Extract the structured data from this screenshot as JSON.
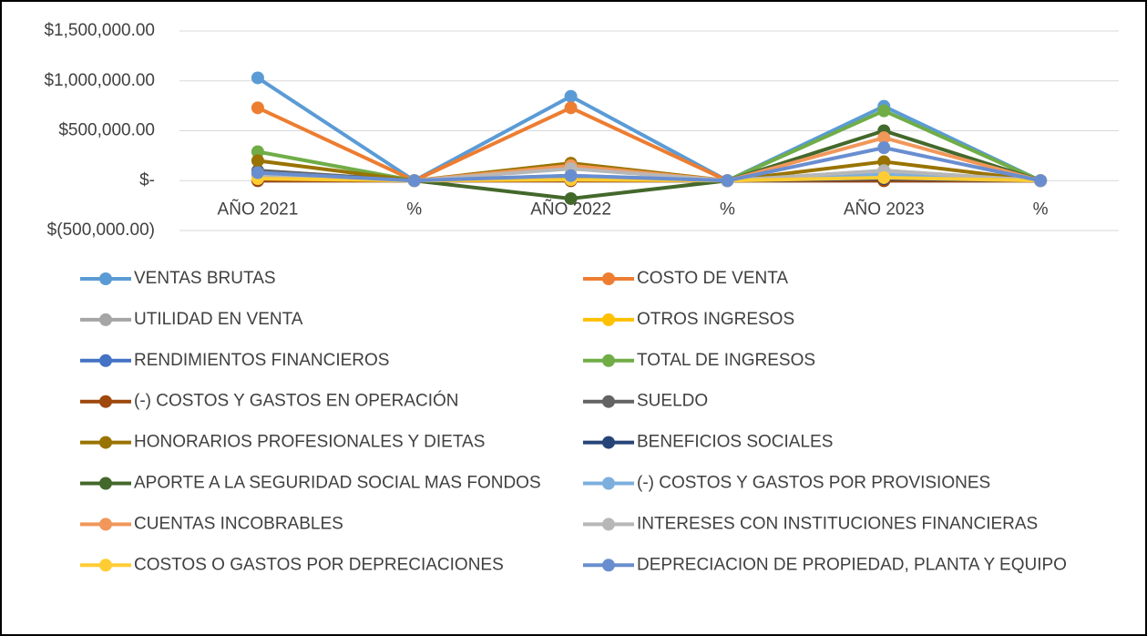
{
  "chart_data": {
    "type": "line",
    "categories": [
      "AÑO 2021",
      "%",
      "AÑO 2022",
      "%",
      "AÑO 2023",
      "%"
    ],
    "ylim": [
      -500000,
      1500000
    ],
    "yticks": [
      {
        "value": -500000,
        "label": "$(500,000.00)"
      },
      {
        "value": 0,
        "label": "$-"
      },
      {
        "value": 500000,
        "label": "$500,000.00"
      },
      {
        "value": 1000000,
        "label": "$1,000,000.00"
      },
      {
        "value": 1500000,
        "label": "$1,500,000.00"
      }
    ],
    "grid": true,
    "legend": "bottom",
    "series": [
      {
        "name": "VENTAS BRUTAS",
        "color": "#5b9bd5",
        "values": [
          1030000,
          0,
          845000,
          0,
          745000,
          0
        ]
      },
      {
        "name": "COSTO DE VENTA",
        "color": "#ed7d31",
        "values": [
          730000,
          0,
          730000,
          0,
          0,
          0
        ]
      },
      {
        "name": "UTILIDAD EN VENTA",
        "color": "#a5a5a5",
        "values": [
          100000,
          0,
          130000,
          0,
          100000,
          0
        ]
      },
      {
        "name": "OTROS INGRESOS",
        "color": "#ffc000",
        "values": [
          10000,
          0,
          10000,
          0,
          10000,
          0
        ]
      },
      {
        "name": "RENDIMIENTOS FINANCIEROS",
        "color": "#4472c4",
        "values": [
          0,
          0,
          0,
          0,
          0,
          0
        ]
      },
      {
        "name": "TOTAL DE INGRESOS",
        "color": "#70ad47",
        "values": [
          290000,
          0,
          130000,
          0,
          700000,
          0
        ]
      },
      {
        "name": "(-) COSTOS Y GASTOS EN OPERACIÓN",
        "color": "#9e480e",
        "values": [
          0,
          0,
          0,
          0,
          0,
          0
        ]
      },
      {
        "name": "SUELDO",
        "color": "#636363",
        "values": [
          100000,
          0,
          20000,
          0,
          30000,
          0
        ]
      },
      {
        "name": "HONORARIOS PROFESIONALES Y DIETAS",
        "color": "#997300",
        "values": [
          200000,
          0,
          175000,
          0,
          190000,
          0
        ]
      },
      {
        "name": "BENEFICIOS SOCIALES",
        "color": "#264478",
        "values": [
          70000,
          0,
          40000,
          0,
          20000,
          0
        ]
      },
      {
        "name": "APORTE A LA SEGURIDAD SOCIAL MAS FONDOS",
        "color": "#43682b",
        "values": [
          50000,
          0,
          -180000,
          0,
          500000,
          0
        ]
      },
      {
        "name": "(-) COSTOS Y GASTOS POR PROVISIONES",
        "color": "#7cafdd",
        "values": [
          60000,
          0,
          50000,
          0,
          60000,
          0
        ]
      },
      {
        "name": "CUENTAS INCOBRABLES",
        "color": "#f1975a",
        "values": [
          30000,
          0,
          150000,
          0,
          430000,
          0
        ]
      },
      {
        "name": "INTERESES CON INSTITUCIONES FINANCIERAS",
        "color": "#b7b7b7",
        "values": [
          40000,
          0,
          120000,
          0,
          100000,
          0
        ]
      },
      {
        "name": "COSTOS O GASTOS POR DEPRECIACIONES",
        "color": "#ffcd33",
        "values": [
          20000,
          0,
          10000,
          0,
          30000,
          0
        ]
      },
      {
        "name": "DEPRECIACION DE PROPIEDAD, PLANTA Y EQUIPO",
        "color": "#698ed0",
        "values": [
          80000,
          0,
          50000,
          0,
          330000,
          0
        ]
      }
    ]
  }
}
